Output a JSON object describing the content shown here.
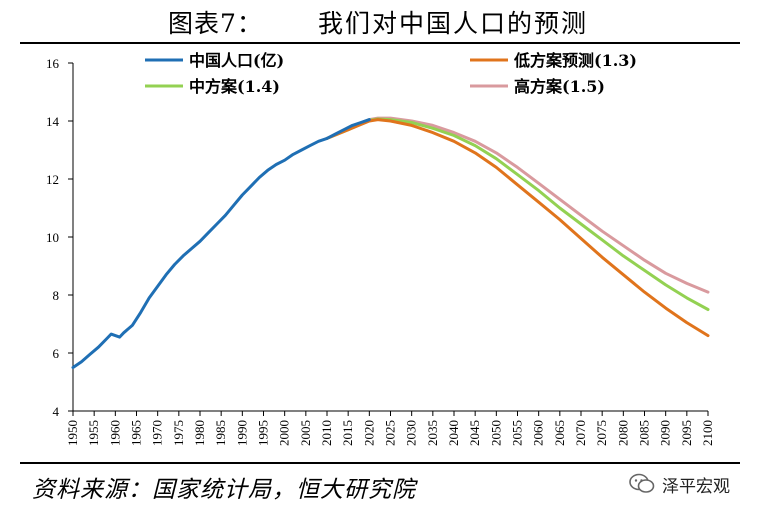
{
  "title": {
    "label": "图表7：",
    "text": "我们对中国人口的预测"
  },
  "source": "资料来源：国家统计局，恒大研究院",
  "watermark": {
    "icon": "wechat-icon",
    "text": "泽平宏观"
  },
  "colors": {
    "actual": "#1f6fb4",
    "low": "#e0741c",
    "mid": "#93d152",
    "high": "#d99a9e",
    "axis": "#000000"
  },
  "chart_data": {
    "type": "line",
    "title": "我们对中国人口的预测",
    "xlabel": "",
    "ylabel": "",
    "ylim": [
      4,
      16
    ],
    "yticks": [
      4,
      6,
      8,
      10,
      12,
      14,
      16
    ],
    "xlim": [
      1950,
      2100
    ],
    "xticks": [
      "1950",
      "1955",
      "1960",
      "1965",
      "1970",
      "1975",
      "1980",
      "1985",
      "1990",
      "1995",
      "2000",
      "2005",
      "2010",
      "2015",
      "2020",
      "2025",
      "2030",
      "2035",
      "2040",
      "2045",
      "2050",
      "2055",
      "2060",
      "2065",
      "2070",
      "2075",
      "2080",
      "2085",
      "2090",
      "2095",
      "2100"
    ],
    "legend": "top",
    "series": [
      {
        "name": "中国人口(亿)",
        "color_key": "actual",
        "x": [
          1950,
          1952,
          1954,
          1956,
          1958,
          1959,
          1960,
          1961,
          1962,
          1964,
          1966,
          1968,
          1970,
          1972,
          1974,
          1976,
          1978,
          1980,
          1982,
          1984,
          1986,
          1988,
          1990,
          1992,
          1994,
          1996,
          1998,
          2000,
          2002,
          2004,
          2006,
          2008,
          2010,
          2012,
          2014,
          2016,
          2018,
          2020
        ],
        "y": [
          5.5,
          5.7,
          5.95,
          6.2,
          6.5,
          6.65,
          6.6,
          6.55,
          6.7,
          6.95,
          7.4,
          7.9,
          8.3,
          8.7,
          9.05,
          9.35,
          9.6,
          9.85,
          10.15,
          10.45,
          10.75,
          11.1,
          11.45,
          11.75,
          12.05,
          12.3,
          12.5,
          12.65,
          12.85,
          13.0,
          13.15,
          13.3,
          13.4,
          13.55,
          13.7,
          13.85,
          13.95,
          14.05
        ]
      },
      {
        "name": "低方案预测(1.3)",
        "color_key": "low",
        "x": [
          2010,
          2015,
          2020,
          2022,
          2025,
          2030,
          2035,
          2040,
          2045,
          2050,
          2055,
          2060,
          2065,
          2070,
          2075,
          2080,
          2085,
          2090,
          2095,
          2100
        ],
        "y": [
          13.4,
          13.7,
          14.0,
          14.05,
          14.0,
          13.85,
          13.6,
          13.3,
          12.9,
          12.4,
          11.8,
          11.2,
          10.6,
          9.95,
          9.3,
          8.7,
          8.1,
          7.55,
          7.05,
          6.6
        ]
      },
      {
        "name": "中方案(1.4)",
        "color_key": "mid",
        "x": [
          2010,
          2015,
          2020,
          2022,
          2025,
          2030,
          2035,
          2040,
          2045,
          2050,
          2055,
          2060,
          2065,
          2070,
          2075,
          2080,
          2085,
          2090,
          2095,
          2100
        ],
        "y": [
          13.4,
          13.7,
          14.02,
          14.07,
          14.05,
          13.95,
          13.75,
          13.5,
          13.15,
          12.7,
          12.15,
          11.6,
          11.0,
          10.45,
          9.9,
          9.35,
          8.85,
          8.35,
          7.9,
          7.5
        ]
      },
      {
        "name": "高方案(1.5)",
        "color_key": "high",
        "x": [
          2010,
          2015,
          2020,
          2022,
          2025,
          2030,
          2035,
          2040,
          2045,
          2050,
          2055,
          2060,
          2065,
          2070,
          2075,
          2080,
          2085,
          2090,
          2095,
          2100
        ],
        "y": [
          13.4,
          13.75,
          14.05,
          14.1,
          14.1,
          14.0,
          13.85,
          13.6,
          13.3,
          12.9,
          12.4,
          11.85,
          11.3,
          10.75,
          10.2,
          9.7,
          9.2,
          8.75,
          8.4,
          8.1
        ]
      }
    ]
  }
}
